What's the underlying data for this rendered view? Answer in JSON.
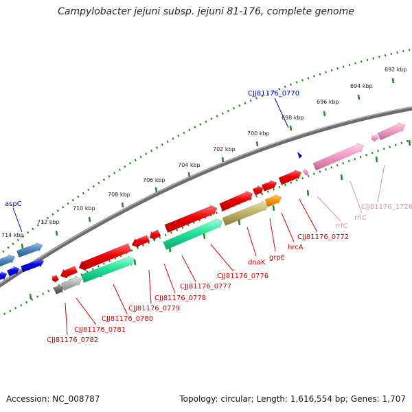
{
  "title": "Campylobacter jejuni subsp. jejuni 81-176, complete genome",
  "footer": {
    "accession": "Accession: NC_008787",
    "summary": "Topology: circular; Length: 1,616,554 bp; Genes: 1,707"
  },
  "colors": {
    "backbone": "#808080",
    "scale_ticks": "#1a8a1a",
    "label_blue": "#0000bb",
    "label_red": "#cc0000",
    "label_pink": "#e68ab8"
  },
  "scale": {
    "ticks": [
      {
        "label": "692 kbp"
      },
      {
        "label": "694 kbp"
      },
      {
        "label": "696 kbp"
      },
      {
        "label": "698 kbp"
      },
      {
        "label": "700 kbp"
      },
      {
        "label": "702 kbp"
      },
      {
        "label": "704 kbp"
      },
      {
        "label": "706 kbp"
      },
      {
        "label": "708 kbp"
      },
      {
        "label": "710 kbp"
      },
      {
        "label": "712 kbp"
      },
      {
        "label": "714 kbp"
      }
    ]
  },
  "gene_labels": [
    {
      "name": "aspC",
      "color": "blue"
    },
    {
      "name": "CJJ81176_0770",
      "color": "blue"
    },
    {
      "name": "CJJ81176_1726",
      "color": "pink"
    },
    {
      "name": "rrlC",
      "color": "pink"
    },
    {
      "name": "rrfC",
      "color": "pink"
    },
    {
      "name": "CJJ81176_0772",
      "color": "red"
    },
    {
      "name": "hrcA",
      "color": "red"
    },
    {
      "name": "grpE",
      "color": "red"
    },
    {
      "name": "dnaK",
      "color": "red"
    },
    {
      "name": "CJJ81176_0776",
      "color": "red"
    },
    {
      "name": "CJJ81176_0777",
      "color": "red"
    },
    {
      "name": "CJJ81176_0778",
      "color": "red"
    },
    {
      "name": "CJJ81176_0779",
      "color": "red"
    },
    {
      "name": "CJJ81176_0780",
      "color": "red"
    },
    {
      "name": "CJJ81176_0781",
      "color": "red"
    },
    {
      "name": "CJJ81176_0782",
      "color": "red"
    }
  ]
}
